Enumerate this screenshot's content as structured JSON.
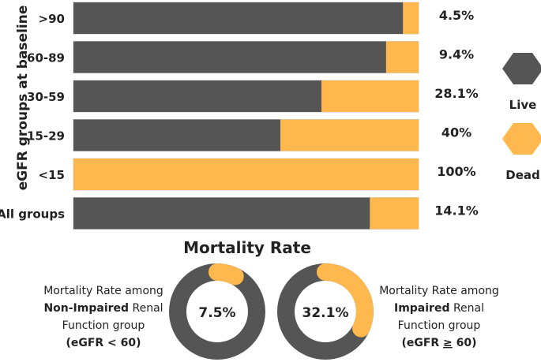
{
  "colors": {
    "live": "#555555",
    "dead": "#FFB84D",
    "text": "#222222",
    "bar_border": "#cccccc"
  },
  "chart_data": [
    {
      "type": "bar",
      "orientation": "horizontal",
      "stacked": "percent",
      "ylabel": "eGFR groups at baseline",
      "categories": [
        ">90",
        "60-89",
        "30-59",
        "15-29",
        "<15",
        "All groups"
      ],
      "series": [
        {
          "name": "Live",
          "values": [
            95.5,
            90.6,
            71.9,
            60,
            0,
            85.9
          ]
        },
        {
          "name": "Dead",
          "values": [
            4.5,
            9.4,
            28.1,
            40,
            100,
            14.1
          ]
        }
      ],
      "data_labels": [
        "4.5%",
        "9.4%",
        "28.1%",
        "40%",
        "100%",
        "14.1%"
      ],
      "xlim": [
        0,
        100
      ],
      "legend": [
        {
          "name": "Live",
          "icon": "hexagon-icon"
        },
        {
          "name": "Dead",
          "icon": "hexagon-icon"
        }
      ],
      "legend_position": "right"
    },
    {
      "type": "pie",
      "title": "Mortality Rate",
      "donuts": [
        {
          "value": 7.5,
          "center_label": "7.5%",
          "caption_prefix": "Mortality Rate among",
          "caption_bold": "Non-Impaired",
          "caption_suffix": "Renal",
          "caption_line3": "Function group",
          "caption_line4": "(eGFR < 60)"
        },
        {
          "value": 32.1,
          "center_label": "32.1%",
          "caption_prefix": "Mortality Rate among",
          "caption_bold": "Impaired",
          "caption_suffix": "Renal",
          "caption_line3": "Function group",
          "caption_line4_pre": "(eGFR ",
          "caption_line4_sym": "≥",
          "caption_line4_post": " 60)"
        }
      ]
    }
  ]
}
